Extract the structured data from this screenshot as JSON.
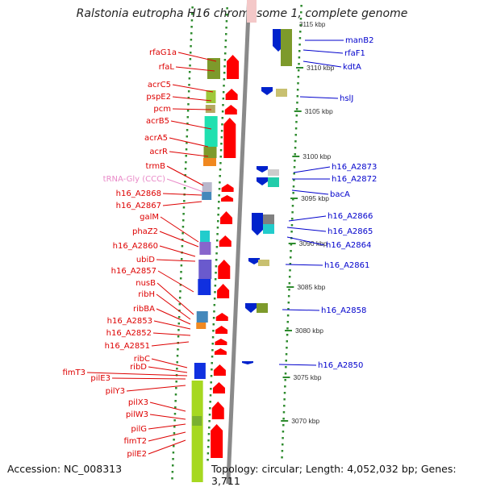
{
  "title": "Ralstonia eutropha H16 chromosome 1, complete genome",
  "accession": "Accession: NC_008313",
  "summary": "Topology: circular; Length: 4,052,032 bp; Genes: 3,711",
  "colors": {
    "left_label": "#dd0000",
    "right_label": "#0000cc",
    "trna_label": "#e98ac8",
    "backbone": "#8a8a8a",
    "dots": "#2e8b2e",
    "forward_arrow": "#ff0000",
    "reverse_arrow": "#0022cc"
  },
  "top_tick": "3115 kbp",
  "scale_ticks": [
    "3110 kbp",
    "3105 kbp",
    "3100 kbp",
    "3095 kbp",
    "3090 kbp",
    "3085 kbp",
    "3080 kbp",
    "3075 kbp",
    "3070 kbp"
  ],
  "left_labels": [
    "rfaG1a",
    "rfaL",
    "acrC5",
    "pspE2",
    "pcm",
    "acrB5",
    "acrA5",
    "acrR",
    "trmB",
    "tRNA-Gly (CCC)",
    "h16_A2868",
    "h16_A2867",
    "galM",
    "phaZ2",
    "h16_A2860",
    "ubiD",
    "h16_A2857",
    "nusB",
    "ribH",
    "ribBA",
    "h16_A2853",
    "h16_A2852",
    "h16_A2851",
    "ribC",
    "ribD",
    "fimT3",
    "pilE3",
    "pilY3",
    "pilX3",
    "pilW3",
    "pilG",
    "fimT2",
    "pilE2"
  ],
  "right_labels": [
    "manB2",
    "rfaF1",
    "kdtA",
    "hslJ",
    "h16_A2873",
    "h16_A2872",
    "bacA",
    "h16_A2866",
    "h16_A2865",
    "h16_A2864",
    "h16_A2861",
    "h16_A2858",
    "h16_A2850"
  ]
}
